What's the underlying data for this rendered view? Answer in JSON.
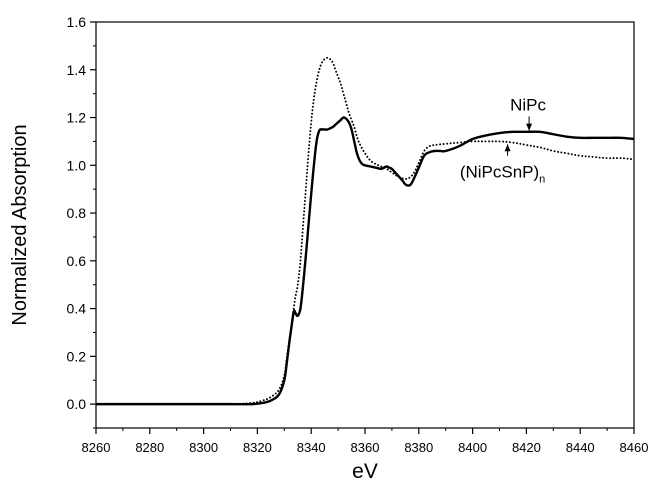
{
  "chart_data": {
    "type": "line",
    "title": "",
    "xlabel": "eV",
    "ylabel": "Normalized Absorption",
    "xlim": [
      8260,
      8460
    ],
    "ylim": [
      -0.1,
      1.6
    ],
    "xticks": [
      8260,
      8280,
      8300,
      8320,
      8340,
      8360,
      8380,
      8400,
      8420,
      8440,
      8460
    ],
    "yticks": [
      0.0,
      0.2,
      0.4,
      0.6,
      0.8,
      1.0,
      1.2,
      1.4,
      1.6
    ],
    "grid": false,
    "series": [
      {
        "name": "NiPc",
        "style": "solid",
        "x": [
          8260,
          8280,
          8300,
          8310,
          8318,
          8322,
          8325,
          8328,
          8330,
          8331,
          8332,
          8333,
          8333.6,
          8334.2,
          8335,
          8336,
          8337,
          8338,
          8339,
          8340,
          8341,
          8342,
          8343,
          8344,
          8345,
          8346,
          8348,
          8349,
          8350,
          8351,
          8352,
          8353,
          8354,
          8355,
          8356,
          8357,
          8358,
          8359,
          8360,
          8362,
          8364,
          8366,
          8367,
          8368,
          8369,
          8370,
          8372,
          8374,
          8375,
          8376,
          8377,
          8378,
          8380,
          8382,
          8384,
          8386,
          8388,
          8390,
          8395,
          8400,
          8405,
          8410,
          8415,
          8420,
          8425,
          8430,
          8435,
          8440,
          8445,
          8450,
          8455,
          8460
        ],
        "y": [
          0.0,
          0.0,
          0.0,
          0.0,
          0.0,
          0.005,
          0.015,
          0.04,
          0.1,
          0.18,
          0.27,
          0.35,
          0.39,
          0.38,
          0.37,
          0.4,
          0.5,
          0.62,
          0.75,
          0.88,
          1.0,
          1.1,
          1.145,
          1.15,
          1.15,
          1.15,
          1.16,
          1.17,
          1.18,
          1.19,
          1.2,
          1.195,
          1.18,
          1.15,
          1.1,
          1.05,
          1.02,
          1.005,
          1.0,
          0.995,
          0.99,
          0.985,
          0.99,
          0.995,
          0.99,
          0.985,
          0.96,
          0.935,
          0.92,
          0.915,
          0.92,
          0.94,
          0.99,
          1.04,
          1.055,
          1.06,
          1.06,
          1.06,
          1.08,
          1.11,
          1.125,
          1.135,
          1.14,
          1.14,
          1.14,
          1.13,
          1.12,
          1.115,
          1.115,
          1.115,
          1.115,
          1.11
        ]
      },
      {
        "name": "(NiPcSnP)n",
        "style": "dotted",
        "x": [
          8260,
          8280,
          8300,
          8310,
          8318,
          8322,
          8325,
          8328,
          8330,
          8331,
          8332,
          8333,
          8334,
          8335,
          8336,
          8337,
          8338,
          8339,
          8340,
          8341,
          8342,
          8343,
          8344,
          8345,
          8346,
          8347,
          8348,
          8349,
          8350,
          8351,
          8352,
          8353,
          8354,
          8355,
          8356,
          8357,
          8358,
          8360,
          8362,
          8364,
          8366,
          8368,
          8370,
          8372,
          8374,
          8376,
          8378,
          8380,
          8382,
          8384,
          8386,
          8390,
          8395,
          8400,
          8405,
          8410,
          8415,
          8420,
          8425,
          8430,
          8435,
          8440,
          8445,
          8450,
          8455,
          8460
        ],
        "y": [
          0.0,
          0.0,
          0.0,
          0.0,
          0.005,
          0.015,
          0.03,
          0.06,
          0.12,
          0.2,
          0.28,
          0.36,
          0.44,
          0.5,
          0.6,
          0.75,
          0.9,
          1.05,
          1.18,
          1.28,
          1.35,
          1.4,
          1.43,
          1.445,
          1.45,
          1.445,
          1.43,
          1.4,
          1.37,
          1.34,
          1.3,
          1.26,
          1.22,
          1.19,
          1.16,
          1.12,
          1.09,
          1.05,
          1.02,
          1.005,
          0.995,
          0.985,
          0.97,
          0.955,
          0.945,
          0.945,
          0.965,
          1.01,
          1.06,
          1.08,
          1.085,
          1.09,
          1.095,
          1.1,
          1.1,
          1.1,
          1.095,
          1.085,
          1.075,
          1.06,
          1.05,
          1.04,
          1.035,
          1.03,
          1.03,
          1.025
        ]
      }
    ],
    "annotations": [
      {
        "id": "nipc",
        "text": "NiPc",
        "subscript": "",
        "arrow_x": 8421,
        "arrow_y_start": 1.205,
        "arrow_y_end": 1.145,
        "arrow_dir": "down"
      },
      {
        "id": "nipcsnp",
        "text": "(NiPcSnP)",
        "subscript": "n",
        "arrow_x": 8413,
        "arrow_y_start": 1.04,
        "arrow_y_end": 1.088,
        "arrow_dir": "up"
      }
    ]
  }
}
